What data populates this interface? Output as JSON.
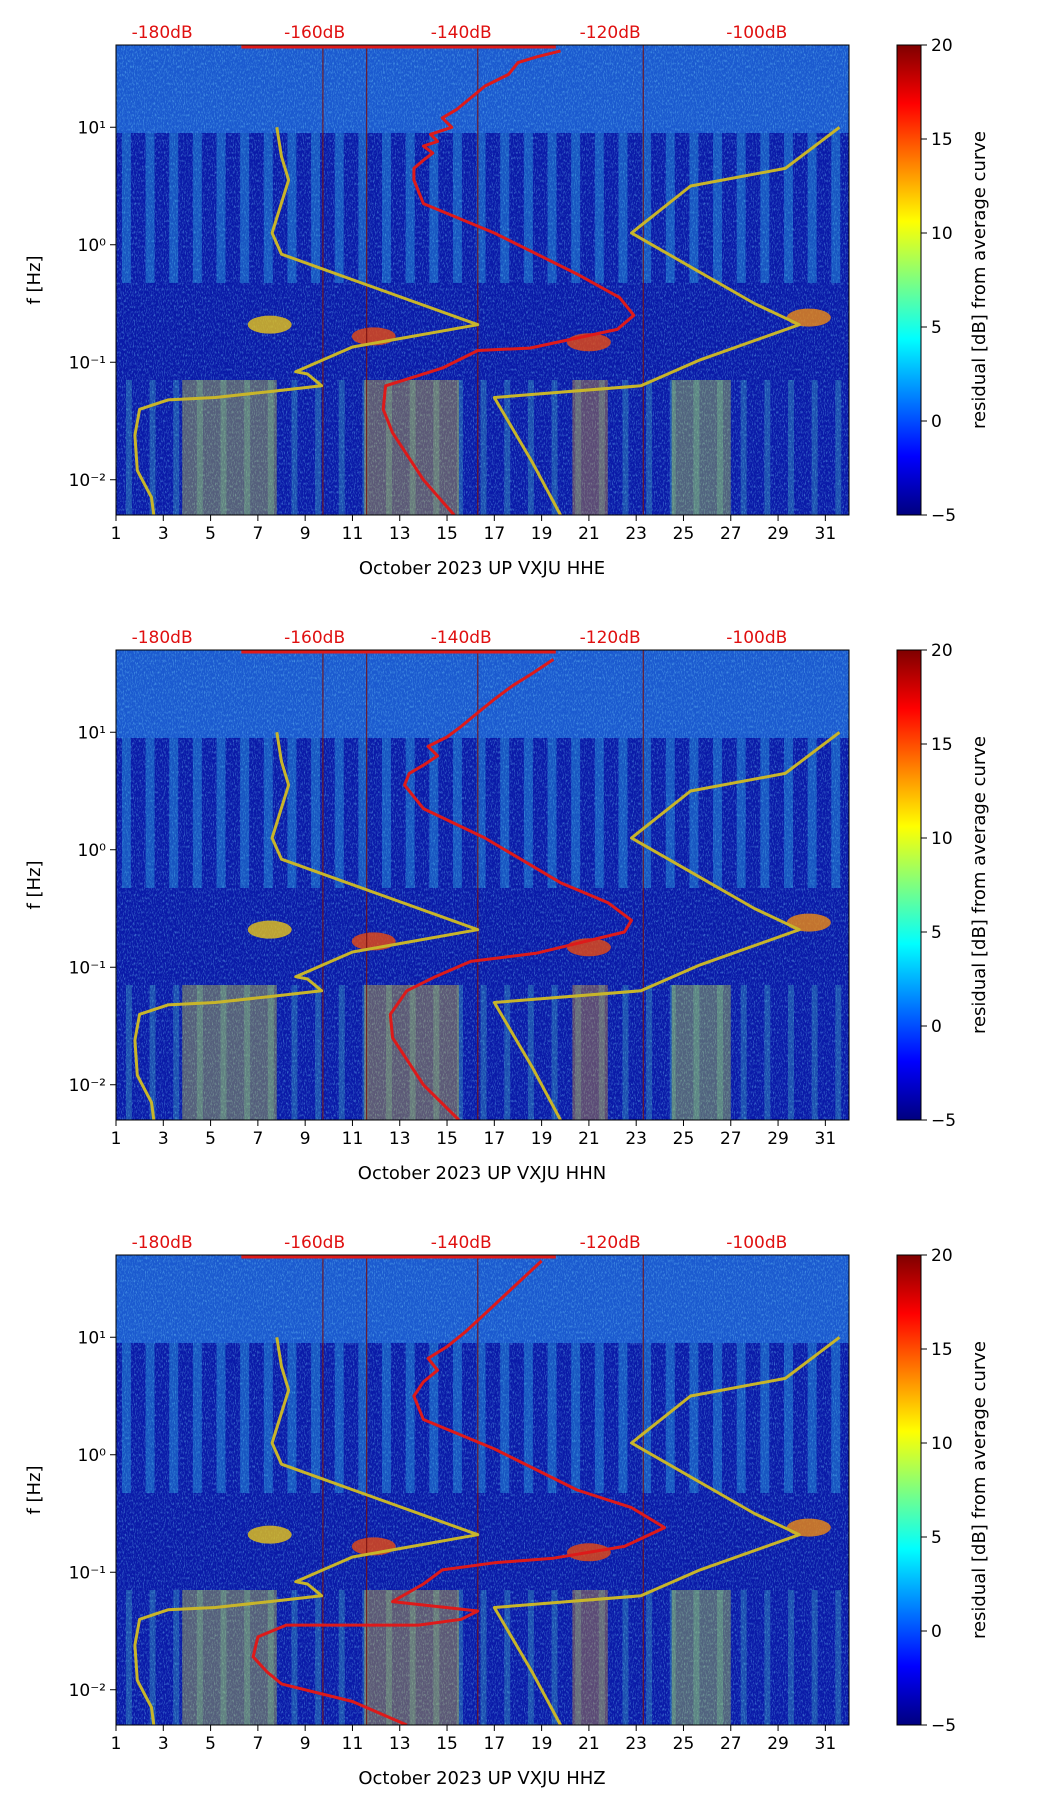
{
  "chart_data": [
    {
      "type": "heatmap",
      "title": "",
      "xlabel": "October 2023 UP VXJU  HHE",
      "ylabel": "f [Hz]",
      "xlim": [
        1,
        32
      ],
      "ylim_log10": [
        -2.3,
        1.7
      ],
      "x_tick_labels": [
        "1",
        "3",
        "5",
        "7",
        "9",
        "11",
        "13",
        "15",
        "17",
        "19",
        "21",
        "23",
        "25",
        "27",
        "29",
        "31"
      ],
      "y_tick_labels": [
        "10⁻²",
        "10⁻¹",
        "10⁰",
        "10¹"
      ],
      "top_axis_labels": [
        "-180dB",
        "-160dB",
        "-140dB",
        "-120dB",
        "-100dB"
      ],
      "colorbar": {
        "label": "residual [dB] from average curve",
        "min": -5,
        "max": 20,
        "tick_labels": [
          "−5",
          "0",
          "5",
          "10",
          "15",
          "20"
        ]
      },
      "series": [
        {
          "name": "model curve (yellow)",
          "color": "#c8b52a",
          "x": [
            2.6,
            2.5,
            1.9,
            1.8,
            2.0,
            3.2,
            5.2,
            7.5,
            9.7,
            9.1,
            8.6,
            11.0,
            16.3,
            8.0,
            7.6,
            8.3,
            8.0,
            7.8
          ],
          "log10f": [
            -2.3,
            -2.15,
            -1.92,
            -1.62,
            -1.4,
            -1.32,
            -1.3,
            -1.25,
            -1.2,
            -1.1,
            -1.08,
            -0.87,
            -0.68,
            -0.08,
            0.1,
            0.55,
            0.75,
            1.0
          ]
        },
        {
          "name": "model curve (yellow, right)",
          "color": "#c8b52a",
          "x": [
            19.8,
            18.6,
            17.0,
            23.2,
            25.7,
            29.9,
            28.0,
            22.8,
            25.3,
            29.3,
            31.6
          ],
          "log10f": [
            -2.3,
            -1.85,
            -1.3,
            -1.2,
            -0.98,
            -0.68,
            -0.5,
            0.1,
            0.5,
            0.65,
            1.0
          ]
        },
        {
          "name": "average PSD (red)",
          "color": "#dd1a1a",
          "x": [
            15.3,
            14.0,
            12.7,
            12.3,
            12.4,
            13.2,
            14.8,
            16.3,
            18.5,
            22.2,
            22.9,
            22.3,
            20.5,
            17.0,
            14.0,
            13.6,
            13.6,
            14.0,
            14.4,
            14.0,
            14.6,
            14.3,
            15.2,
            14.8,
            15.4,
            16.0,
            16.6,
            17.6,
            18.0,
            18.8,
            19.8
          ],
          "log10f": [
            -2.3,
            -2.0,
            -1.6,
            -1.4,
            -1.2,
            -1.15,
            -1.05,
            -0.9,
            -0.88,
            -0.72,
            -0.6,
            -0.45,
            -0.25,
            0.1,
            0.35,
            0.55,
            0.65,
            0.72,
            0.78,
            0.84,
            0.88,
            0.94,
            1.0,
            1.08,
            1.15,
            1.25,
            1.35,
            1.45,
            1.55,
            1.6,
            1.65
          ]
        }
      ]
    },
    {
      "type": "heatmap",
      "title": "",
      "xlabel": "October 2023 UP VXJU  HHN",
      "ylabel": "f [Hz]",
      "xlim": [
        1,
        32
      ],
      "ylim_log10": [
        -2.3,
        1.7
      ],
      "x_tick_labels": [
        "1",
        "3",
        "5",
        "7",
        "9",
        "11",
        "13",
        "15",
        "17",
        "19",
        "21",
        "23",
        "25",
        "27",
        "29",
        "31"
      ],
      "y_tick_labels": [
        "10⁻²",
        "10⁻¹",
        "10⁰",
        "10¹"
      ],
      "top_axis_labels": [
        "-180dB",
        "-160dB",
        "-140dB",
        "-120dB",
        "-100dB"
      ],
      "colorbar": {
        "label": "residual [dB] from average curve",
        "min": -5,
        "max": 20,
        "tick_labels": [
          "−5",
          "0",
          "5",
          "10",
          "15",
          "20"
        ]
      },
      "series": [
        {
          "name": "model curve (yellow)",
          "color": "#c8b52a",
          "x": [
            2.6,
            2.5,
            1.9,
            1.8,
            2.0,
            3.2,
            5.2,
            7.5,
            9.7,
            9.1,
            8.6,
            11.0,
            16.3,
            8.0,
            7.6,
            8.3,
            8.0,
            7.8
          ],
          "log10f": [
            -2.3,
            -2.15,
            -1.92,
            -1.62,
            -1.4,
            -1.32,
            -1.3,
            -1.25,
            -1.2,
            -1.1,
            -1.08,
            -0.87,
            -0.68,
            -0.08,
            0.1,
            0.55,
            0.75,
            1.0
          ]
        },
        {
          "name": "model curve (yellow, right)",
          "color": "#c8b52a",
          "x": [
            19.8,
            18.6,
            17.0,
            23.2,
            25.7,
            29.9,
            28.0,
            22.8,
            25.3,
            29.3,
            31.6
          ],
          "log10f": [
            -2.3,
            -1.85,
            -1.3,
            -1.2,
            -0.98,
            -0.68,
            -0.5,
            0.1,
            0.5,
            0.65,
            1.0
          ]
        },
        {
          "name": "average PSD (red)",
          "color": "#dd1a1a",
          "x": [
            15.5,
            14.0,
            12.7,
            12.6,
            13.3,
            14.5,
            16.0,
            18.8,
            22.5,
            22.8,
            21.8,
            19.8,
            16.6,
            14.0,
            13.2,
            13.4,
            14.0,
            14.6,
            14.2,
            15.0,
            15.6,
            16.2,
            17.0,
            17.8,
            18.6,
            19.5
          ],
          "log10f": [
            -2.3,
            -2.0,
            -1.6,
            -1.4,
            -1.2,
            -1.08,
            -0.95,
            -0.88,
            -0.7,
            -0.6,
            -0.45,
            -0.28,
            0.1,
            0.35,
            0.55,
            0.65,
            0.72,
            0.8,
            0.88,
            0.96,
            1.05,
            1.15,
            1.28,
            1.4,
            1.5,
            1.62
          ]
        }
      ]
    },
    {
      "type": "heatmap",
      "title": "",
      "xlabel": "October 2023 UP VXJU  HHZ",
      "ylabel": "f [Hz]",
      "xlim": [
        1,
        32
      ],
      "ylim_log10": [
        -2.3,
        1.7
      ],
      "x_tick_labels": [
        "1",
        "3",
        "5",
        "7",
        "9",
        "11",
        "13",
        "15",
        "17",
        "19",
        "21",
        "23",
        "25",
        "27",
        "29",
        "31"
      ],
      "y_tick_labels": [
        "10⁻²",
        "10⁻¹",
        "10⁰",
        "10¹"
      ],
      "top_axis_labels": [
        "-180dB",
        "-160dB",
        "-140dB",
        "-120dB",
        "-100dB"
      ],
      "colorbar": {
        "label": "residual [dB] from average curve",
        "min": -5,
        "max": 20,
        "tick_labels": [
          "−5",
          "0",
          "5",
          "10",
          "15",
          "20"
        ]
      },
      "series": [
        {
          "name": "model curve (yellow)",
          "color": "#c8b52a",
          "x": [
            2.6,
            2.5,
            1.9,
            1.8,
            2.0,
            3.2,
            5.2,
            7.5,
            9.7,
            9.1,
            8.6,
            11.0,
            16.3,
            8.0,
            7.6,
            8.3,
            8.0,
            7.8
          ],
          "log10f": [
            -2.3,
            -2.15,
            -1.92,
            -1.62,
            -1.4,
            -1.32,
            -1.3,
            -1.25,
            -1.2,
            -1.1,
            -1.08,
            -0.87,
            -0.68,
            -0.08,
            0.1,
            0.55,
            0.75,
            1.0
          ]
        },
        {
          "name": "model curve (yellow, right)",
          "color": "#c8b52a",
          "x": [
            19.8,
            18.6,
            17.0,
            23.2,
            25.7,
            29.9,
            28.0,
            22.8,
            25.3,
            29.3,
            31.6
          ],
          "log10f": [
            -2.3,
            -1.85,
            -1.3,
            -1.2,
            -0.98,
            -0.68,
            -0.5,
            0.1,
            0.5,
            0.65,
            1.0
          ]
        },
        {
          "name": "average PSD (red)",
          "color": "#dd1a1a",
          "x": [
            13.3,
            11.0,
            8.0,
            7.4,
            6.8,
            7.0,
            8.2,
            11.4,
            13.8,
            15.6,
            16.3,
            12.7,
            14.0,
            14.8,
            17.0,
            19.5,
            22.5,
            24.2,
            22.8,
            20.5,
            17.0,
            14.0,
            13.6,
            14.0,
            14.6,
            14.2,
            15.0,
            15.8,
            16.6,
            17.4,
            18.2,
            19.0
          ],
          "log10f": [
            -2.3,
            -2.1,
            -1.95,
            -1.85,
            -1.72,
            -1.55,
            -1.45,
            -1.45,
            -1.45,
            -1.4,
            -1.33,
            -1.25,
            -1.1,
            -0.98,
            -0.92,
            -0.88,
            -0.78,
            -0.62,
            -0.45,
            -0.3,
            0.05,
            0.3,
            0.5,
            0.62,
            0.72,
            0.82,
            0.92,
            1.05,
            1.2,
            1.35,
            1.5,
            1.65
          ]
        }
      ]
    }
  ]
}
